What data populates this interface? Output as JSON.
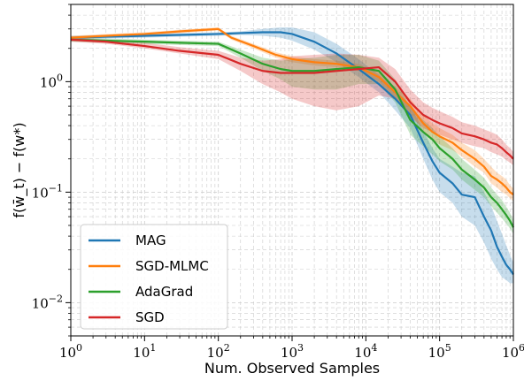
{
  "chart_data": {
    "type": "line",
    "xscale": "log",
    "yscale": "log",
    "xlim": [
      1,
      1000000
    ],
    "ylim": [
      0.005,
      5
    ],
    "grid": true,
    "legend_position": "lower-left",
    "xlabel": "Num. Observed Samples",
    "ylabel": "f(w̄_t) − f(w*)",
    "x_ticks": [
      {
        "value": 1,
        "base": "10",
        "exp": "0"
      },
      {
        "value": 10,
        "base": "10",
        "exp": "1"
      },
      {
        "value": 100,
        "base": "10",
        "exp": "2"
      },
      {
        "value": 1000,
        "base": "10",
        "exp": "3"
      },
      {
        "value": 10000,
        "base": "10",
        "exp": "4"
      },
      {
        "value": 100000,
        "base": "10",
        "exp": "5"
      },
      {
        "value": 1000000,
        "base": "10",
        "exp": "6"
      }
    ],
    "y_ticks": [
      {
        "value": 0.01,
        "base": "10",
        "exp": "−2"
      },
      {
        "value": 0.1,
        "base": "10",
        "exp": "−1"
      },
      {
        "value": 1,
        "base": "10",
        "exp": "0"
      }
    ],
    "series": [
      {
        "name": "MAG",
        "color": "#1f77b4",
        "x": [
          1,
          3,
          10,
          30,
          100,
          200,
          400,
          700,
          1000,
          2000,
          4000,
          8000,
          15000,
          25000,
          40000,
          60000,
          80000,
          100000,
          150000,
          200000,
          300000,
          400000,
          500000,
          600000,
          700000,
          800000,
          900000,
          1000000
        ],
        "y": [
          2.5,
          2.55,
          2.6,
          2.65,
          2.7,
          2.75,
          2.8,
          2.8,
          2.7,
          2.3,
          1.8,
          1.3,
          0.95,
          0.7,
          0.5,
          0.28,
          0.19,
          0.15,
          0.12,
          0.095,
          0.09,
          0.06,
          0.045,
          0.032,
          0.026,
          0.022,
          0.02,
          0.018
        ],
        "lower": [
          2.4,
          2.45,
          2.5,
          2.55,
          2.6,
          2.65,
          2.6,
          2.5,
          2.35,
          1.95,
          1.5,
          1.1,
          0.8,
          0.55,
          0.38,
          0.2,
          0.13,
          0.1,
          0.08,
          0.06,
          0.05,
          0.035,
          0.025,
          0.02,
          0.017,
          0.016,
          0.015,
          0.015
        ],
        "upper": [
          2.6,
          2.65,
          2.7,
          2.75,
          2.8,
          2.85,
          3.0,
          3.1,
          3.1,
          2.8,
          2.2,
          1.6,
          1.15,
          0.85,
          0.62,
          0.36,
          0.25,
          0.2,
          0.17,
          0.15,
          0.14,
          0.1,
          0.075,
          0.055,
          0.042,
          0.033,
          0.027,
          0.023
        ]
      },
      {
        "name": "SGD-MLMC",
        "color": "#ff7f0e",
        "x": [
          1,
          3,
          10,
          30,
          100,
          150,
          300,
          600,
          1000,
          2000,
          4000,
          8000,
          15000,
          25000,
          40000,
          60000,
          80000,
          100000,
          150000,
          200000,
          300000,
          400000,
          500000,
          600000,
          700000,
          800000,
          900000,
          1000000
        ],
        "y": [
          2.5,
          2.6,
          2.7,
          2.85,
          3.0,
          2.5,
          2.1,
          1.75,
          1.6,
          1.5,
          1.45,
          1.35,
          1.1,
          0.8,
          0.6,
          0.42,
          0.35,
          0.32,
          0.28,
          0.24,
          0.2,
          0.17,
          0.14,
          0.13,
          0.12,
          0.11,
          0.1,
          0.095
        ],
        "lower": [
          2.4,
          2.5,
          2.6,
          2.75,
          2.9,
          2.4,
          2.0,
          1.65,
          1.5,
          1.4,
          1.35,
          1.25,
          1.0,
          0.72,
          0.52,
          0.36,
          0.3,
          0.27,
          0.24,
          0.21,
          0.17,
          0.15,
          0.12,
          0.11,
          0.1,
          0.095,
          0.088,
          0.083
        ],
        "upper": [
          2.6,
          2.7,
          2.8,
          2.95,
          3.1,
          2.6,
          2.2,
          1.85,
          1.7,
          1.6,
          1.55,
          1.45,
          1.2,
          0.9,
          0.7,
          0.5,
          0.42,
          0.38,
          0.33,
          0.28,
          0.24,
          0.2,
          0.17,
          0.15,
          0.14,
          0.13,
          0.115,
          0.108
        ]
      },
      {
        "name": "AdaGrad",
        "color": "#2ca02c",
        "x": [
          1,
          3,
          10,
          30,
          100,
          200,
          400,
          700,
          1000,
          2000,
          4000,
          8000,
          15000,
          25000,
          40000,
          60000,
          80000,
          100000,
          150000,
          200000,
          300000,
          400000,
          500000,
          600000,
          700000,
          800000,
          900000,
          1000000
        ],
        "y": [
          2.4,
          2.35,
          2.3,
          2.25,
          2.2,
          1.8,
          1.45,
          1.3,
          1.25,
          1.25,
          1.3,
          1.35,
          1.25,
          0.85,
          0.45,
          0.35,
          0.3,
          0.25,
          0.2,
          0.16,
          0.13,
          0.11,
          0.09,
          0.08,
          0.07,
          0.062,
          0.055,
          0.048
        ],
        "lower": [
          2.3,
          2.25,
          2.2,
          2.15,
          2.1,
          1.65,
          1.25,
          1.05,
          0.9,
          0.85,
          0.85,
          0.95,
          0.95,
          0.65,
          0.33,
          0.26,
          0.22,
          0.19,
          0.16,
          0.13,
          0.105,
          0.09,
          0.075,
          0.065,
          0.058,
          0.052,
          0.047,
          0.042
        ],
        "upper": [
          2.5,
          2.45,
          2.4,
          2.35,
          2.3,
          1.95,
          1.65,
          1.55,
          1.6,
          1.65,
          1.75,
          1.75,
          1.55,
          1.05,
          0.58,
          0.45,
          0.38,
          0.32,
          0.25,
          0.2,
          0.16,
          0.135,
          0.11,
          0.095,
          0.085,
          0.074,
          0.065,
          0.056
        ]
      },
      {
        "name": "SGD",
        "color": "#d62728",
        "x": [
          1,
          3,
          10,
          30,
          100,
          200,
          400,
          700,
          1000,
          2000,
          4000,
          8000,
          15000,
          25000,
          40000,
          60000,
          80000,
          100000,
          150000,
          200000,
          300000,
          400000,
          500000,
          600000,
          700000,
          800000,
          900000,
          1000000
        ],
        "y": [
          2.4,
          2.3,
          2.1,
          1.9,
          1.75,
          1.45,
          1.25,
          1.2,
          1.2,
          1.2,
          1.25,
          1.3,
          1.35,
          1.0,
          0.65,
          0.5,
          0.45,
          0.42,
          0.38,
          0.34,
          0.32,
          0.3,
          0.28,
          0.27,
          0.25,
          0.23,
          0.215,
          0.2
        ],
        "lower": [
          2.3,
          2.2,
          2.0,
          1.8,
          1.6,
          1.25,
          0.95,
          0.8,
          0.7,
          0.6,
          0.55,
          0.6,
          0.75,
          0.7,
          0.48,
          0.38,
          0.35,
          0.33,
          0.3,
          0.28,
          0.26,
          0.25,
          0.23,
          0.22,
          0.21,
          0.195,
          0.185,
          0.175
        ],
        "upper": [
          2.5,
          2.4,
          2.25,
          2.05,
          1.9,
          1.65,
          1.55,
          1.6,
          1.7,
          1.75,
          1.8,
          1.75,
          1.65,
          1.3,
          0.85,
          0.65,
          0.58,
          0.54,
          0.48,
          0.43,
          0.4,
          0.37,
          0.35,
          0.33,
          0.3,
          0.27,
          0.25,
          0.23
        ]
      }
    ]
  }
}
